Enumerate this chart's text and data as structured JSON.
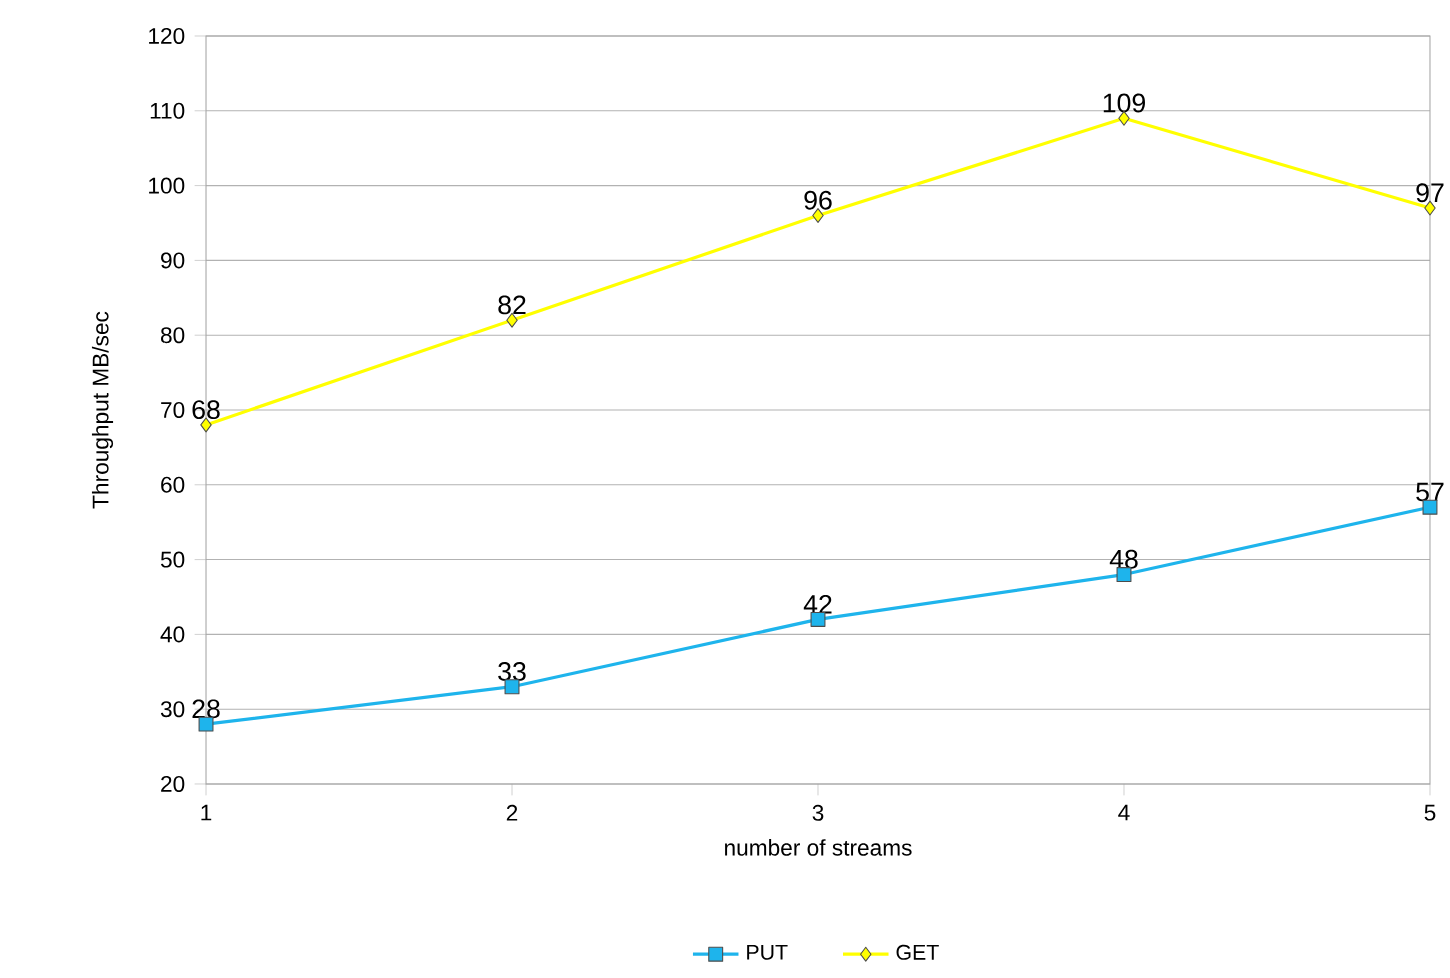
{
  "chart_data": {
    "type": "line",
    "xlabel": "number of streams",
    "ylabel": "Throughput MB/sec",
    "x": [
      1,
      2,
      3,
      4,
      5
    ],
    "xlim": [
      1,
      5
    ],
    "xticks": [
      1,
      2,
      3,
      4,
      5
    ],
    "ylim": [
      20,
      120
    ],
    "yticks": [
      20,
      30,
      40,
      50,
      60,
      70,
      80,
      90,
      100,
      110,
      120
    ],
    "grid": "y",
    "legend": "bottom",
    "data_labels": true,
    "series": [
      {
        "name": "PUT",
        "color": "#1eb4ec",
        "marker": "square",
        "values": [
          28,
          33,
          42,
          48,
          57
        ]
      },
      {
        "name": "GET",
        "color": "#ffff00",
        "marker": "diamond",
        "values": [
          68,
          82,
          96,
          109,
          97
        ]
      }
    ]
  }
}
